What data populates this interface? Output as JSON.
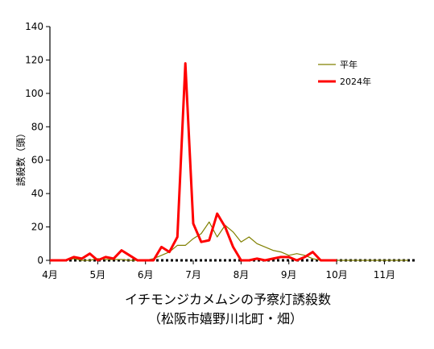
{
  "chart_data": {
    "type": "line",
    "title": "イチモンジカメムシの予察灯誘殺数",
    "subtitle": "（松阪市嬉野川北町・畑）",
    "ylabel": "誘殺数（頭）",
    "xlabel": "",
    "ylim": [
      0,
      140
    ],
    "yticks": [
      0,
      20,
      40,
      60,
      80,
      100,
      120,
      140
    ],
    "xlim": [
      0,
      46
    ],
    "month_labels": [
      {
        "label": "4月",
        "x": 0
      },
      {
        "label": "5月",
        "x": 6
      },
      {
        "label": "6月",
        "x": 12
      },
      {
        "label": "7月",
        "x": 18
      },
      {
        "label": "8月",
        "x": 24
      },
      {
        "label": "9月",
        "x": 30
      },
      {
        "label": "10月",
        "x": 36
      },
      {
        "label": "11月",
        "x": 42
      }
    ],
    "grid": false,
    "legend_position": "top-right",
    "series": [
      {
        "name": "平年",
        "color": "#808000",
        "values": [
          0,
          0,
          0,
          1,
          0,
          0,
          1,
          0.5,
          0.5,
          0.5,
          0,
          0,
          0,
          1,
          3,
          5,
          9,
          9,
          13,
          16,
          23,
          14,
          21,
          17,
          11,
          14,
          10,
          8,
          6,
          5,
          3,
          4,
          3,
          1,
          0,
          0,
          0,
          0,
          0,
          0,
          0,
          0,
          0,
          0,
          0,
          0
        ]
      },
      {
        "name": "2024年",
        "color": "#ff0000",
        "values": [
          0,
          0,
          0,
          2,
          1,
          4,
          0,
          2,
          1,
          6,
          3,
          0,
          0,
          0,
          8,
          5,
          14,
          118,
          22,
          11,
          12,
          28,
          20,
          8,
          0,
          0,
          1,
          0,
          1,
          2,
          2,
          0,
          2,
          5,
          0,
          0,
          0
        ]
      }
    ]
  }
}
